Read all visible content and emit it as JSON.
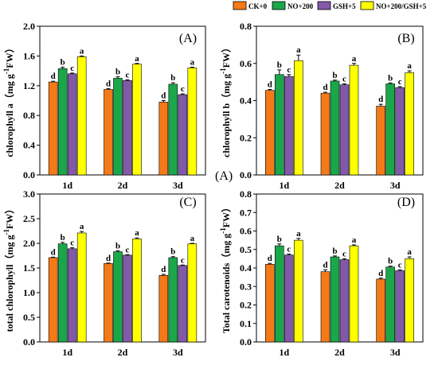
{
  "legend": [
    {
      "label": "CK+0",
      "color": "#f47a17"
    },
    {
      "label": "NO+200",
      "color": "#1aa74a"
    },
    {
      "label": "GSH+5",
      "color": "#8259a8"
    },
    {
      "label": "NO+200/GSH+5",
      "color": "#ffff00"
    }
  ],
  "stray_label": "(A)",
  "chart_data": [
    {
      "type": "bar",
      "panel_label": "(A)",
      "ylabel_main": "chlorophyll a",
      "ylabel_unit": "（mg g",
      "ylabel_sup": "-1",
      "ylabel_tail": "FW）",
      "categories": [
        "1d",
        "2d",
        "3d"
      ],
      "ylim": [
        0,
        2.0
      ],
      "yticks": [
        "0.0",
        "0.4",
        "0.8",
        "1.2",
        "1.6",
        "2.0"
      ],
      "series": [
        {
          "name": "CK+0",
          "values": [
            1.25,
            1.15,
            0.98
          ],
          "errors": [
            0.01,
            0.01,
            0.02
          ],
          "letters": [
            "d",
            "d",
            "d"
          ]
        },
        {
          "name": "NO+200",
          "values": [
            1.43,
            1.3,
            1.22
          ],
          "errors": [
            0.02,
            0.02,
            0.02
          ],
          "letters": [
            "b",
            "b",
            "b"
          ]
        },
        {
          "name": "GSH+5",
          "values": [
            1.36,
            1.27,
            1.08
          ],
          "errors": [
            0.01,
            0.01,
            0.01
          ],
          "letters": [
            "c",
            "c",
            "c"
          ]
        },
        {
          "name": "NO+200/GSH+5",
          "values": [
            1.59,
            1.49,
            1.44
          ],
          "errors": [
            0.01,
            0.01,
            0.01
          ],
          "letters": [
            "a",
            "a",
            "a"
          ]
        }
      ]
    },
    {
      "type": "bar",
      "panel_label": "(B)",
      "ylabel_main": "chlorophyll b",
      "ylabel_unit": "（mg g",
      "ylabel_sup": "-1",
      "ylabel_tail": "FW）",
      "categories": [
        "1d",
        "2d",
        "3d"
      ],
      "ylim": [
        0,
        0.8
      ],
      "yticks": [
        "0.0",
        "0.2",
        "0.4",
        "0.6",
        "0.8"
      ],
      "series": [
        {
          "name": "CK+0",
          "values": [
            0.455,
            0.44,
            0.37
          ],
          "errors": [
            0.005,
            0.005,
            0.01
          ],
          "letters": [
            "d",
            "d",
            "d"
          ]
        },
        {
          "name": "NO+200",
          "values": [
            0.54,
            0.505,
            0.49
          ],
          "errors": [
            0.025,
            0.005,
            0.005
          ],
          "letters": [
            "b",
            "b",
            "b"
          ]
        },
        {
          "name": "GSH+5",
          "values": [
            0.53,
            0.485,
            0.47
          ],
          "errors": [
            0.01,
            0.005,
            0.005
          ],
          "letters": [
            "c",
            "c",
            "c"
          ]
        },
        {
          "name": "NO+200/GSH+5",
          "values": [
            0.615,
            0.59,
            0.55
          ],
          "errors": [
            0.03,
            0.01,
            0.01
          ],
          "letters": [
            "a",
            "a",
            "a"
          ]
        }
      ]
    },
    {
      "type": "bar",
      "panel_label": "(C)",
      "ylabel_main": "total chlorophyll",
      "ylabel_unit": "（mg g",
      "ylabel_sup": "-1",
      "ylabel_tail": "FW）",
      "categories": [
        "1d",
        "2d",
        "3d"
      ],
      "ylim": [
        0,
        3.0
      ],
      "yticks": [
        "0.0",
        "0.5",
        "1.0",
        "1.5",
        "2.0",
        "2.5",
        "3.0"
      ],
      "series": [
        {
          "name": "CK+0",
          "values": [
            1.71,
            1.59,
            1.35
          ],
          "errors": [
            0.01,
            0.01,
            0.02
          ],
          "letters": [
            "d",
            "d",
            "d"
          ]
        },
        {
          "name": "NO+200",
          "values": [
            1.99,
            1.83,
            1.71
          ],
          "errors": [
            0.03,
            0.02,
            0.02
          ],
          "letters": [
            "b",
            "b",
            "b"
          ]
        },
        {
          "name": "GSH+5",
          "values": [
            1.89,
            1.76,
            1.55
          ],
          "errors": [
            0.02,
            0.01,
            0.01
          ],
          "letters": [
            "c",
            "c",
            "c"
          ]
        },
        {
          "name": "NO+200/GSH+5",
          "values": [
            2.21,
            2.09,
            1.99
          ],
          "errors": [
            0.03,
            0.02,
            0.01
          ],
          "letters": [
            "a",
            "a",
            "a"
          ]
        }
      ]
    },
    {
      "type": "bar",
      "panel_label": "(D)",
      "ylabel_main": "Total carotenoids",
      "ylabel_unit": "（mg g",
      "ylabel_sup": "-1",
      "ylabel_tail": "FW）",
      "categories": [
        "1d",
        "2d",
        "3d"
      ],
      "ylim": [
        0,
        0.8
      ],
      "yticks": [
        "0.0",
        "0.1",
        "0.2",
        "0.3",
        "0.4",
        "0.5",
        "0.6",
        "0.7",
        "0.8"
      ],
      "series": [
        {
          "name": "CK+0",
          "values": [
            0.42,
            0.38,
            0.34
          ],
          "errors": [
            0.005,
            0.01,
            0.005
          ],
          "letters": [
            "d",
            "d",
            "d"
          ]
        },
        {
          "name": "NO+200",
          "values": [
            0.52,
            0.46,
            0.405
          ],
          "errors": [
            0.01,
            0.005,
            0.005
          ],
          "letters": [
            "b",
            "b",
            "b"
          ]
        },
        {
          "name": "GSH+5",
          "values": [
            0.47,
            0.445,
            0.385
          ],
          "errors": [
            0.005,
            0.005,
            0.005
          ],
          "letters": [
            "c",
            "c",
            "c"
          ]
        },
        {
          "name": "NO+200/GSH+5",
          "values": [
            0.55,
            0.52,
            0.45
          ],
          "errors": [
            0.01,
            0.005,
            0.01
          ],
          "letters": [
            "a",
            "a",
            "a"
          ]
        }
      ]
    }
  ]
}
